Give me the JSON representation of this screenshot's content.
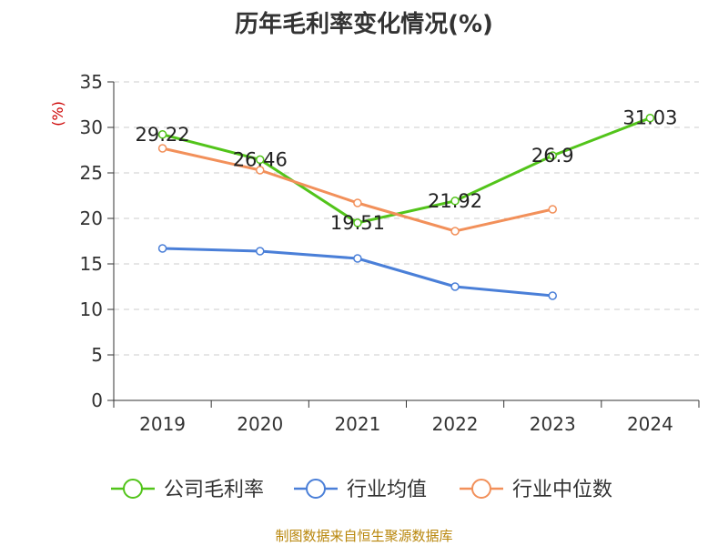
{
  "chart_data": {
    "type": "line",
    "title": "历年毛利率变化情况(%)",
    "ylabel": "(%)",
    "categories": [
      "2019",
      "2020",
      "2021",
      "2022",
      "2023",
      "2024"
    ],
    "ylim": [
      0,
      35
    ],
    "yticks": [
      0,
      5,
      10,
      15,
      20,
      25,
      30,
      35
    ],
    "ytick_labels": [
      "0",
      "5",
      "10",
      "15",
      "20",
      "25",
      "30",
      "35"
    ],
    "grid": true,
    "legend_position": "bottom",
    "series": [
      {
        "name": "公司毛利率",
        "color": "#52c41a",
        "values": [
          29.22,
          26.46,
          19.51,
          21.92,
          26.9,
          31.03
        ],
        "labels": [
          "29.22",
          "26.46",
          "19.51",
          "21.92",
          "26.9",
          "31.03"
        ]
      },
      {
        "name": "行业均值",
        "color": "#4a7fd8",
        "values": [
          16.7,
          16.4,
          15.6,
          12.5,
          11.5,
          null
        ]
      },
      {
        "name": "行业中位数",
        "color": "#f2905a",
        "values": [
          27.7,
          25.3,
          21.7,
          18.6,
          21.0,
          null
        ]
      }
    ]
  },
  "footer": {
    "source": "制图数据来自恒生聚源数据库"
  }
}
